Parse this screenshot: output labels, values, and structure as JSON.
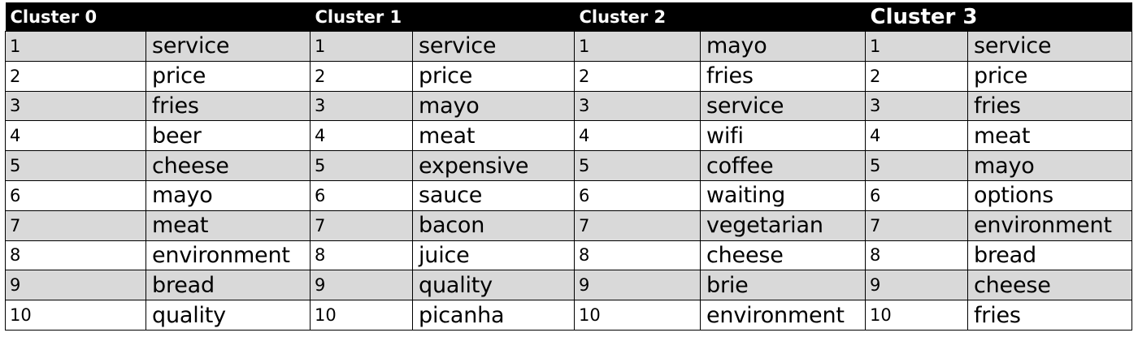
{
  "clusters": [
    {
      "title": "Cluster 0",
      "ranks": [
        "1",
        "2",
        "3",
        "4",
        "5",
        "6",
        "7",
        "8",
        "9",
        "10"
      ],
      "terms": [
        "service",
        "price",
        "fries",
        "beer",
        "cheese",
        "mayo",
        "meat",
        "environment",
        "bread",
        "quality"
      ]
    },
    {
      "title": "Cluster 1",
      "ranks": [
        "1",
        "2",
        "3",
        "4",
        "5",
        "6",
        "7",
        "8",
        "9",
        "10"
      ],
      "terms": [
        "service",
        "price",
        "mayo",
        "meat",
        "expensive",
        "sauce",
        "bacon",
        "juice",
        "quality",
        "picanha"
      ]
    },
    {
      "title": "Cluster 2",
      "ranks": [
        "1",
        "2",
        "3",
        "4",
        "5",
        "6",
        "7",
        "8",
        "9",
        "10"
      ],
      "terms": [
        "mayo",
        "fries",
        "service",
        "wifi",
        "coffee",
        "waiting",
        "vegetarian",
        "cheese",
        "brie",
        "environment"
      ]
    },
    {
      "title": "Cluster 3",
      "ranks": [
        "1",
        "2",
        "3",
        "4",
        "5",
        "6",
        "7",
        "8",
        "9",
        "10"
      ],
      "terms": [
        "service",
        "price",
        "fries",
        "meat",
        "mayo",
        "options",
        "environment",
        "bread",
        "cheese",
        "fries"
      ]
    }
  ],
  "colors": {
    "header_background": "#000000",
    "header_text": "#ffffff",
    "shaded_row": "#d9d9d9",
    "plain_row": "#ffffff",
    "grid_line": "#000000"
  }
}
